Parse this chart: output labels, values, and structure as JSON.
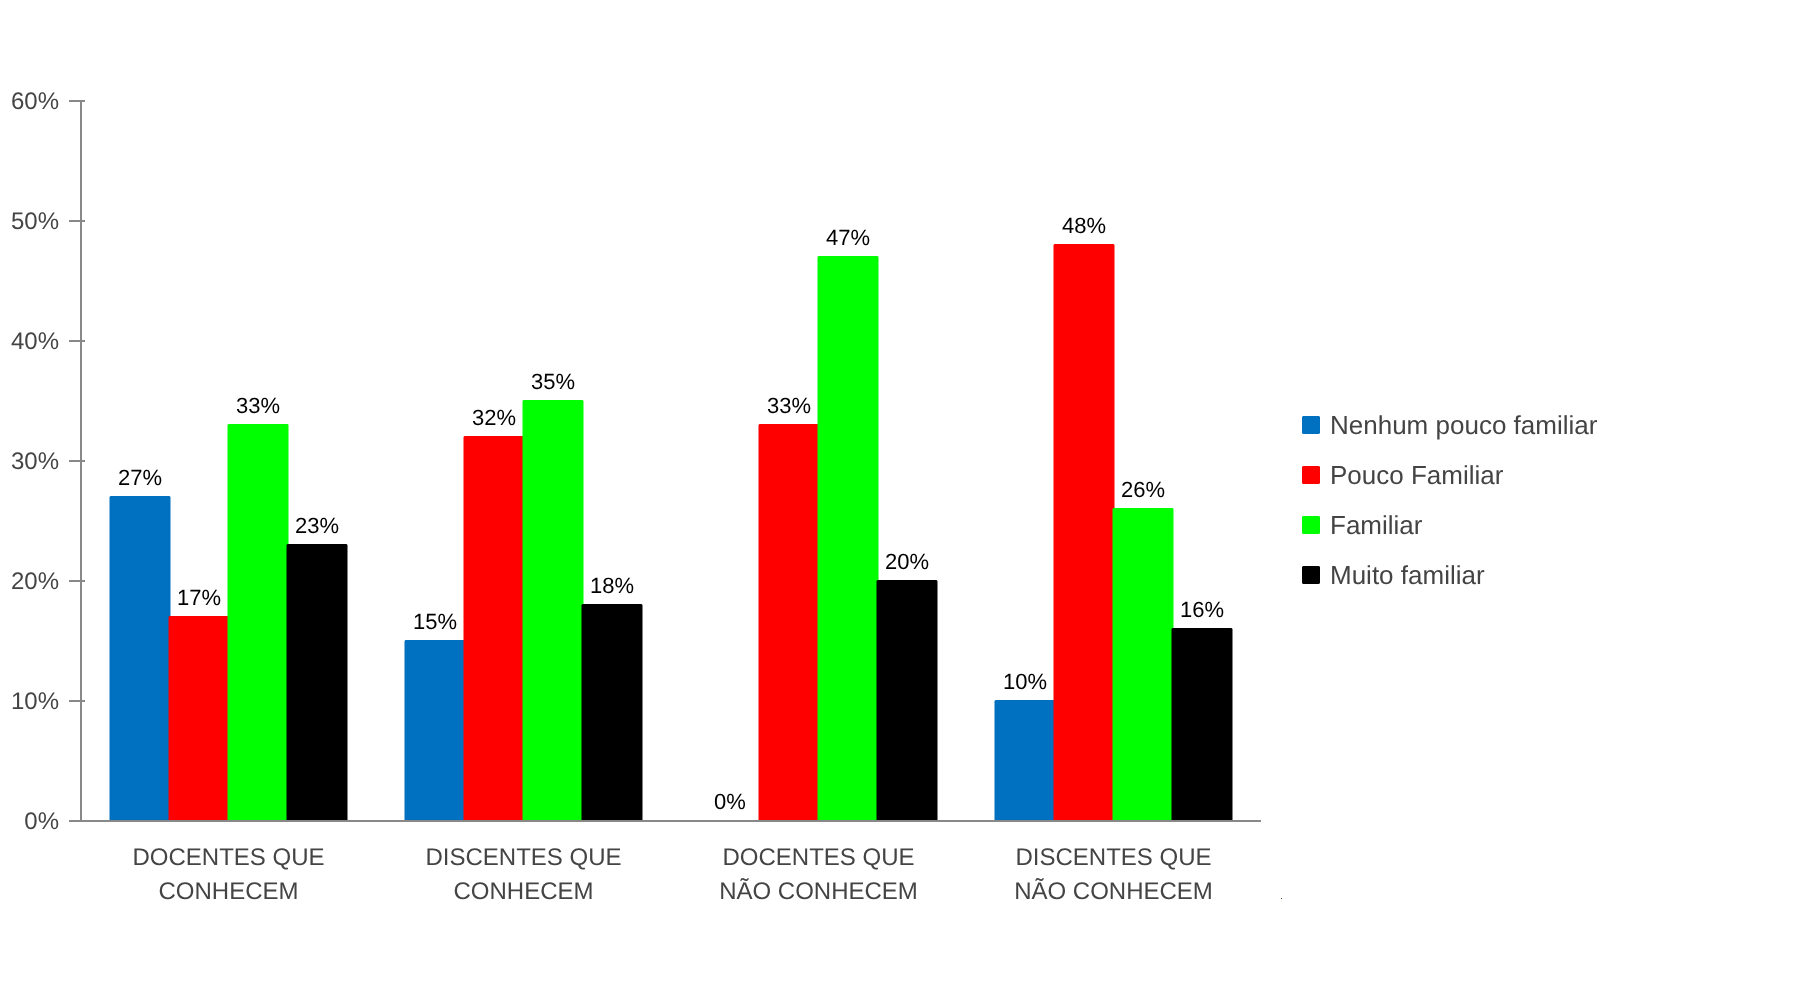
{
  "chart_data": {
    "type": "bar",
    "categories": [
      "DOCENTES QUE\nCONHECEM",
      "DISCENTES QUE\nCONHECEM",
      "DOCENTES QUE\nNÃO CONHECEM",
      "DISCENTES QUE\nNÃO CONHECEM"
    ],
    "series": [
      {
        "name": "Nenhum pouco familiar",
        "color": "#0070c0",
        "values": [
          27,
          15,
          0,
          10
        ],
        "value_labels": [
          "27%",
          "15%",
          "0%",
          "10%"
        ]
      },
      {
        "name": "Pouco Familiar",
        "color": "#ff0000",
        "values": [
          17,
          32,
          33,
          48
        ],
        "value_labels": [
          "17%",
          "32%",
          "33%",
          "48%"
        ]
      },
      {
        "name": "Familiar",
        "color": "#00ff00",
        "values": [
          33,
          35,
          47,
          26
        ],
        "value_labels": [
          "33%",
          "35%",
          "47%",
          "26%"
        ]
      },
      {
        "name": "Muito familiar",
        "color": "#000000",
        "values": [
          23,
          18,
          20,
          16
        ],
        "value_labels": [
          "23%",
          "18%",
          "20%",
          "16%"
        ]
      }
    ],
    "ylim": [
      0,
      60
    ],
    "yticks": [
      {
        "value": 0,
        "label": "0%"
      },
      {
        "value": 10,
        "label": "10%"
      },
      {
        "value": 20,
        "label": "20%"
      },
      {
        "value": 30,
        "label": "30%"
      },
      {
        "value": 40,
        "label": "40%"
      },
      {
        "value": 50,
        "label": "50%"
      },
      {
        "value": 60,
        "label": "60%"
      }
    ],
    "grid": false,
    "legend": "right"
  }
}
